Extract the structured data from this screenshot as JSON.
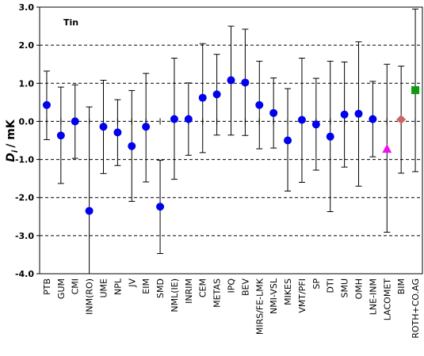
{
  "chart_data": {
    "type": "scatter",
    "title": "Tin",
    "xlabel": "",
    "ylabel": "D",
    "ylabel_subscript": "i",
    "ylabel_unit": "/ mK",
    "ylim": [
      -4.0,
      3.0
    ],
    "yticks": [
      3.0,
      2.0,
      1.0,
      0.0,
      -1.0,
      -2.0,
      -3.0,
      -4.0
    ],
    "ytick_labels": [
      "3.0",
      "2.0",
      "1.0",
      "0.0",
      "-1.0",
      "-2.0",
      "-3.0",
      "-4.0"
    ],
    "grid": "horizontal dashed",
    "categories": [
      "PTB",
      "GUM",
      "CMI",
      "INM(RO)",
      "UME",
      "NPL",
      "JV",
      "EIM",
      "SMD",
      "NML(IE)",
      "INRIM",
      "CEM",
      "METAS",
      "IPQ",
      "BEV",
      "MIRS/FE-LMK",
      "NMI-VSL",
      "MIKES",
      "VMT/PFI",
      "SP",
      "DTI",
      "SMU",
      "OMH",
      "LNE-INM",
      "LACOMET",
      "BIM",
      "ROTH+CO.AG"
    ],
    "values": [
      0.43,
      -0.37,
      0.0,
      -2.35,
      -0.14,
      -0.29,
      -0.65,
      -0.14,
      -2.24,
      0.06,
      0.06,
      0.62,
      0.71,
      1.08,
      1.02,
      0.43,
      0.22,
      -0.5,
      0.04,
      -0.08,
      -0.4,
      0.18,
      0.2,
      0.06,
      -0.72,
      0.05,
      0.82
    ],
    "error_upper": [
      1.32,
      0.9,
      0.96,
      0.38,
      1.08,
      0.57,
      0.81,
      1.26,
      -1.02,
      1.66,
      1.01,
      2.04,
      1.76,
      2.5,
      2.42,
      1.58,
      1.14,
      0.86,
      1.66,
      1.13,
      1.58,
      1.56,
      2.09,
      1.05,
      1.5,
      1.45,
      2.95
    ],
    "error_lower": [
      -0.48,
      -1.63,
      -0.97,
      -4.0,
      -1.37,
      -1.16,
      -2.1,
      -1.59,
      -3.47,
      -1.52,
      -0.89,
      -0.82,
      -0.36,
      -0.36,
      -0.37,
      -0.72,
      -0.7,
      -1.83,
      -1.6,
      -1.28,
      -2.37,
      -1.2,
      -1.7,
      -0.93,
      -2.91,
      -1.36,
      -1.32
    ],
    "markers": [
      "circle",
      "circle",
      "circle",
      "circle",
      "circle",
      "circle",
      "circle",
      "circle",
      "circle",
      "circle",
      "circle",
      "circle",
      "circle",
      "circle",
      "circle",
      "circle",
      "circle",
      "circle",
      "circle",
      "circle",
      "circle",
      "circle",
      "circle",
      "circle",
      "triangle",
      "diamond",
      "square"
    ],
    "marker_colors": [
      "#0000ee",
      "#0000ee",
      "#0000ee",
      "#0000ee",
      "#0000ee",
      "#0000ee",
      "#0000ee",
      "#0000ee",
      "#0000ee",
      "#0000ee",
      "#0000ee",
      "#0000ee",
      "#0000ee",
      "#0000ee",
      "#0000ee",
      "#0000ee",
      "#0000ee",
      "#0000ee",
      "#0000ee",
      "#0000ee",
      "#0000ee",
      "#0000ee",
      "#0000ee",
      "#0000ee",
      "#ee11ee",
      "#cc6666",
      "#119911"
    ]
  }
}
